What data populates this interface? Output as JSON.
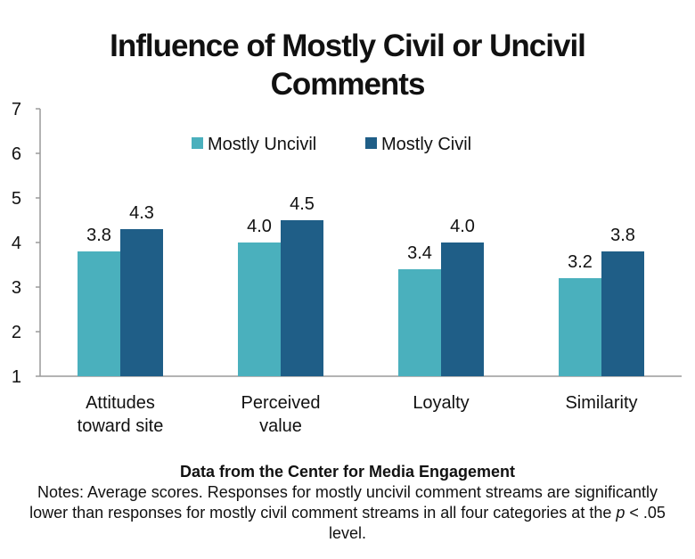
{
  "colors": {
    "series_1": "#4ab0bd",
    "series_2": "#1f5e87",
    "axis": "#9a9a9a",
    "text": "#111111"
  },
  "chart_data": {
    "type": "bar",
    "title_lines": [
      "Influence of Mostly Civil or Uncivil",
      "Comments"
    ],
    "categories": [
      [
        "Attitudes",
        "toward site"
      ],
      [
        "Perceived",
        "value"
      ],
      [
        "Loyalty"
      ],
      [
        "Similarity"
      ]
    ],
    "series": [
      {
        "name": "Mostly Uncivil",
        "values": [
          3.8,
          4.0,
          3.4,
          3.2
        ],
        "labels": [
          "3.8",
          "4.0",
          "3.4",
          "3.2"
        ],
        "color": "#4ab0bd"
      },
      {
        "name": "Mostly Civil",
        "values": [
          4.3,
          4.5,
          4.0,
          3.8
        ],
        "labels": [
          "4.3",
          "4.5",
          "4.0",
          "3.8"
        ],
        "color": "#1f5e87"
      }
    ],
    "ylim": [
      1,
      7
    ],
    "yticks": [
      1,
      2,
      3,
      4,
      5,
      6,
      7
    ],
    "grid": false,
    "legend_position": "top"
  },
  "footer": {
    "source": "Data from the Center for Media Engagement",
    "notes_before_p": "Notes: Average scores. Responses for mostly uncivil comment streams are significantly lower than responses for mostly civil comment streams in all four categories at the ",
    "p_symbol": "p",
    "notes_after_p": " < .05 level."
  }
}
